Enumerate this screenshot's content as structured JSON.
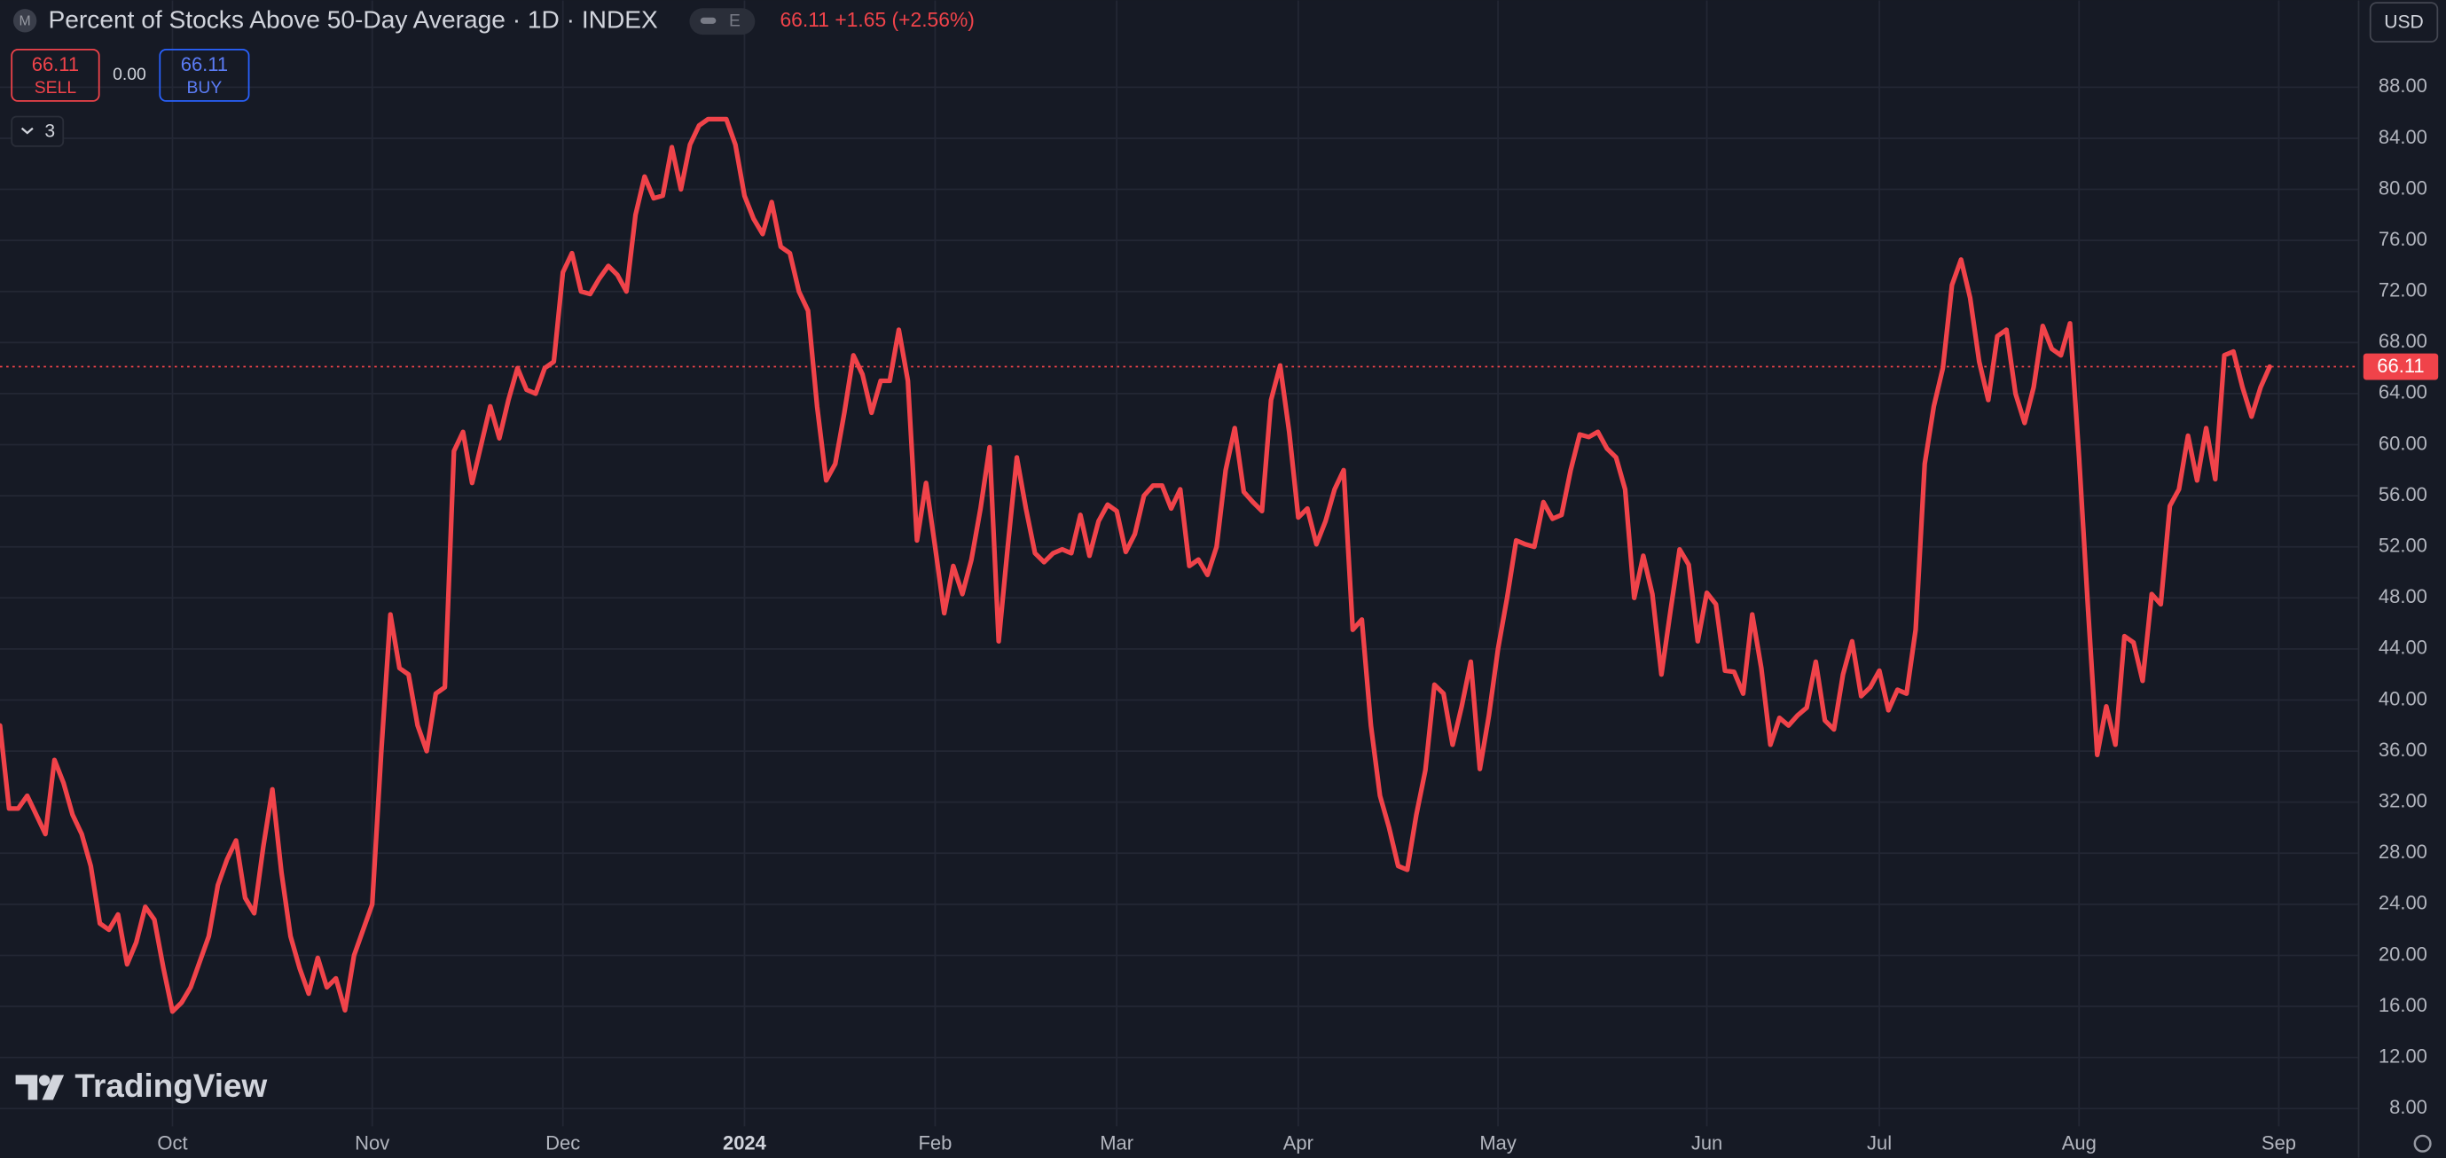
{
  "header": {
    "symbol_icon": "M",
    "title": "Percent of Stocks Above 50-Day Average · 1D · INDEX",
    "badge": "E",
    "change": "+1.65",
    "change_pct": "(+2.56%)"
  },
  "orders": {
    "sell_price": 66.11,
    "sell": "SELL",
    "spread": "0.00",
    "buy_price": 66.11,
    "buy": "BUY"
  },
  "indicators": 3,
  "currency": "USD",
  "logo": "TradingView",
  "chart_data": {
    "type": "line",
    "grid": true,
    "ylim": [
      6.6,
      94.8
    ],
    "yticks": [
      {
        "value": 8,
        "label": "8.00"
      },
      {
        "value": 12,
        "label": "12.00"
      },
      {
        "value": 16,
        "label": "16.00"
      },
      {
        "value": 20,
        "label": "20.00"
      },
      {
        "value": 24,
        "label": "24.00"
      },
      {
        "value": 28,
        "label": "28.00"
      },
      {
        "value": 32,
        "label": "32.00"
      },
      {
        "value": 36,
        "label": "36.00"
      },
      {
        "value": 40,
        "label": "40.00"
      },
      {
        "value": 44,
        "label": "44.00"
      },
      {
        "value": 48,
        "label": "48.00"
      },
      {
        "value": 52,
        "label": "52.00"
      },
      {
        "value": 56,
        "label": "56.00"
      },
      {
        "value": 60,
        "label": "60.00"
      },
      {
        "value": 64,
        "label": "64.00"
      },
      {
        "value": 68,
        "label": "68.00"
      },
      {
        "value": 72,
        "label": "72.00"
      },
      {
        "value": 76,
        "label": "76.00"
      },
      {
        "value": 80,
        "label": "80.00"
      },
      {
        "value": 84,
        "label": "84.00"
      },
      {
        "value": 88,
        "label": "88.00"
      }
    ],
    "categories": [
      null,
      null,
      null,
      null,
      null,
      null,
      null,
      null,
      null,
      null,
      null,
      null,
      null,
      null,
      null,
      null,
      null,
      null,
      null,
      "Oct",
      null,
      null,
      null,
      null,
      null,
      null,
      null,
      null,
      null,
      null,
      null,
      null,
      null,
      null,
      null,
      null,
      null,
      null,
      null,
      null,
      null,
      "Nov",
      null,
      null,
      null,
      null,
      null,
      null,
      null,
      null,
      null,
      null,
      null,
      null,
      null,
      null,
      null,
      null,
      null,
      null,
      null,
      null,
      "Dec",
      null,
      null,
      null,
      null,
      null,
      null,
      null,
      null,
      null,
      null,
      null,
      null,
      null,
      null,
      null,
      null,
      null,
      null,
      null,
      "2024",
      null,
      null,
      null,
      null,
      null,
      null,
      null,
      null,
      null,
      null,
      null,
      null,
      null,
      null,
      null,
      null,
      null,
      null,
      null,
      null,
      "Feb",
      null,
      null,
      null,
      null,
      null,
      null,
      null,
      null,
      null,
      null,
      null,
      null,
      null,
      null,
      null,
      null,
      null,
      null,
      null,
      "Mar",
      null,
      null,
      null,
      null,
      null,
      null,
      null,
      null,
      null,
      null,
      null,
      null,
      null,
      null,
      null,
      null,
      null,
      null,
      null,
      "Apr",
      null,
      null,
      null,
      null,
      null,
      null,
      null,
      null,
      null,
      null,
      null,
      null,
      null,
      null,
      null,
      null,
      null,
      null,
      null,
      null,
      null,
      "May",
      null,
      null,
      null,
      null,
      null,
      null,
      null,
      null,
      null,
      null,
      null,
      null,
      null,
      null,
      null,
      null,
      null,
      null,
      null,
      null,
      null,
      null,
      "Jun",
      null,
      null,
      null,
      null,
      null,
      null,
      null,
      null,
      null,
      null,
      null,
      null,
      null,
      null,
      null,
      null,
      null,
      null,
      "Jul",
      null,
      null,
      null,
      null,
      null,
      null,
      null,
      null,
      null,
      null,
      null,
      null,
      null,
      null,
      null,
      null,
      null,
      null,
      null,
      null,
      null,
      "Aug",
      null,
      null,
      null,
      null,
      null,
      null,
      null,
      null,
      null,
      null,
      null,
      null,
      null,
      null,
      null,
      null,
      null,
      null,
      null,
      null,
      null,
      "Sep"
    ],
    "series": [
      {
        "name": "Percent of Stocks Above 50-Day Average",
        "color": "#f0434a",
        "values": [
          38,
          31.5,
          31.5,
          32.5,
          31,
          29.5,
          35.3,
          33.5,
          31,
          29.5,
          27,
          22.5,
          22,
          23.2,
          19.3,
          21,
          23.8,
          22.8,
          19,
          15.6,
          16.3,
          17.5,
          19.5,
          21.5,
          25.5,
          27.5,
          29,
          24.5,
          23.3,
          28.5,
          33,
          26.5,
          21.5,
          19,
          17,
          19.8,
          17.5,
          18.2,
          15.7,
          20,
          22,
          24,
          36,
          46.7,
          42.5,
          42,
          38,
          36,
          40.5,
          41,
          59.5,
          61,
          57,
          60,
          63,
          60.5,
          63.5,
          66,
          64.3,
          64,
          66,
          66.5,
          73.5,
          75,
          72,
          71.8,
          73,
          74,
          73.3,
          72,
          78,
          81,
          79.3,
          79.5,
          83.3,
          80,
          83.5,
          85,
          85.5,
          85.5,
          85.5,
          83.5,
          79.5,
          77.7,
          76.5,
          79,
          75.5,
          75,
          72,
          70.5,
          63,
          57.2,
          58.5,
          62.5,
          67,
          65.5,
          62.5,
          65,
          65,
          69,
          65,
          52.5,
          57,
          52,
          46.8,
          50.5,
          48.3,
          51,
          55,
          59.8,
          44.6,
          52,
          59,
          55,
          51.5,
          50.8,
          51.5,
          51.8,
          51.5,
          54.5,
          51.3,
          54,
          55.3,
          54.8,
          51.6,
          53,
          56,
          56.8,
          56.8,
          55,
          56.5,
          50.5,
          51,
          49.8,
          52,
          58,
          61.3,
          56.3,
          55.5,
          54.8,
          63.5,
          66.2,
          61,
          54.3,
          55,
          52.2,
          54,
          56.5,
          58,
          45.5,
          46.3,
          38,
          32.5,
          30,
          27,
          26.7,
          31,
          34.5,
          41.2,
          40.5,
          36.5,
          39.5,
          43,
          34.6,
          38.8,
          44,
          48,
          52.5,
          52.2,
          52,
          55.5,
          54.2,
          54.5,
          58,
          60.8,
          60.6,
          61,
          59.7,
          59,
          56.5,
          48,
          51.3,
          48.3,
          42,
          47,
          51.8,
          50.6,
          44.6,
          48.4,
          47.5,
          42.3,
          42.2,
          40.5,
          46.7,
          42.5,
          36.5,
          38.6,
          38,
          38.8,
          39.4,
          43,
          38.4,
          37.7,
          42,
          44.6,
          40.3,
          41,
          42.3,
          39.2,
          40.8,
          40.5,
          45.5,
          58.5,
          63,
          66,
          72.5,
          74.5,
          71.5,
          66.5,
          63.5,
          68.5,
          69,
          64,
          61.7,
          64.5,
          69.3,
          67.5,
          67,
          69.5,
          59,
          47,
          35.7,
          39.5,
          36.5,
          45,
          44.5,
          41.5,
          48.3,
          47.5,
          55.2,
          56.5,
          60.7,
          57.2,
          61.3,
          57.3,
          67,
          67.3,
          64.5,
          62.2,
          64.5,
          66.11,
          null
        ]
      }
    ]
  }
}
